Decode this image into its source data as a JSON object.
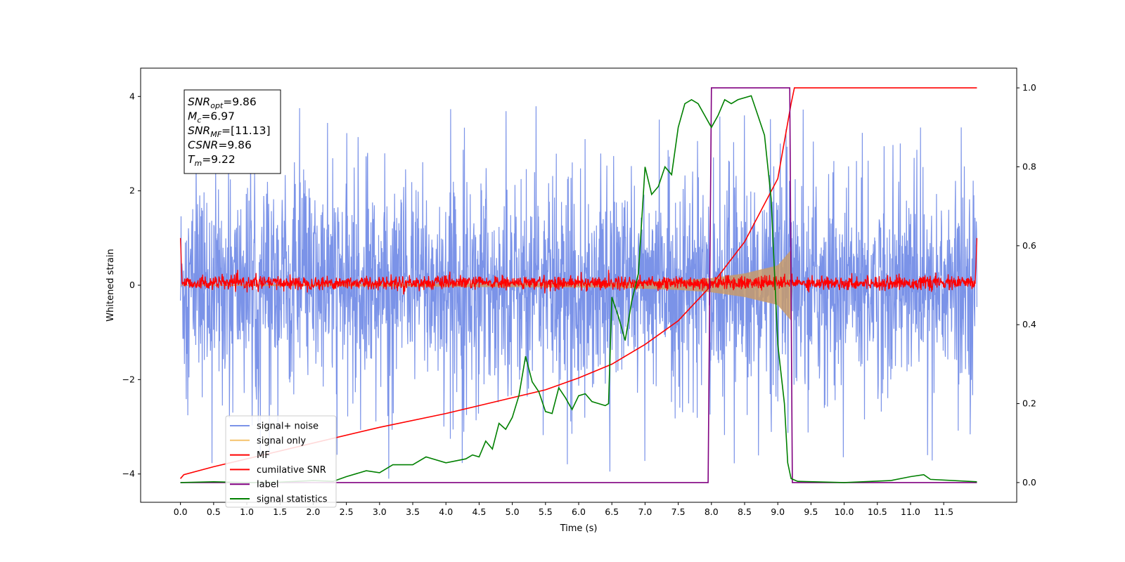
{
  "chart_data": {
    "type": "line",
    "xlabel": "Time (s)",
    "ylabel": "Whitened strain",
    "xlim": [
      -0.6,
      12.6
    ],
    "ylim": [
      -4.6,
      4.6
    ],
    "y2lim": [
      -0.05,
      1.05
    ],
    "xticks": [
      0.0,
      0.5,
      1.0,
      1.5,
      2.0,
      2.5,
      3.0,
      3.5,
      4.0,
      4.5,
      5.0,
      5.5,
      6.0,
      6.5,
      7.0,
      7.5,
      8.0,
      8.5,
      9.0,
      9.5,
      10.0,
      10.5,
      11.0,
      11.5
    ],
    "xtick_labels": [
      "0.0",
      "0.5",
      "1.0",
      "1.5",
      "2.0",
      "2.5",
      "3.0",
      "3.5",
      "4.0",
      "4.5",
      "5.0",
      "5.5",
      "6.0",
      "6.5",
      "7.0",
      "7.5",
      "8.0",
      "8.5",
      "9.0",
      "9.5",
      "10.0",
      "10.5",
      "11.0",
      "11.5"
    ],
    "yticks": [
      -4,
      -2,
      0,
      2,
      4
    ],
    "ytick_labels": [
      "−4",
      "−2",
      "0",
      "2",
      "4"
    ],
    "y2ticks": [
      0.0,
      0.2,
      0.4,
      0.6,
      0.8,
      1.0
    ],
    "y2tick_labels": [
      "0.0",
      "0.2",
      "0.4",
      "0.6",
      "0.8",
      "1.0"
    ],
    "grid": false,
    "legend_position": "lower-left",
    "annotation": {
      "lines": [
        {
          "main": "SNR",
          "sub": "opt",
          "value": "=9.86"
        },
        {
          "main": "M",
          "sub": "c",
          "value": "=6.97"
        },
        {
          "main": "SNR",
          "sub": "MF",
          "value": "=[11.13]"
        },
        {
          "main": "CSNR",
          "sub": "",
          "value": "=9.86"
        },
        {
          "main": "T",
          "sub": "m",
          "value": "=9.22"
        }
      ]
    },
    "series": [
      {
        "name": "signal+ noise",
        "axis": "left",
        "color": "#7b93e8",
        "kind": "noise",
        "x_range": [
          0.0,
          12.0
        ],
        "envelope_typical": 1.4,
        "spike_max": 4.1,
        "spike_min": -4.1
      },
      {
        "name": "signal only",
        "axis": "left",
        "color": "#f5c26b",
        "kind": "chirp",
        "x_range": [
          0.0,
          9.22
        ],
        "amplitude_points": [
          [
            0.0,
            0.01
          ],
          [
            6.5,
            0.05
          ],
          [
            7.5,
            0.1
          ],
          [
            8.0,
            0.15
          ],
          [
            8.5,
            0.25
          ],
          [
            9.0,
            0.42
          ],
          [
            9.2,
            0.75
          ],
          [
            9.22,
            0.0
          ]
        ]
      },
      {
        "name": "MF",
        "axis": "left",
        "color": "#ff0000",
        "kind": "mf-noise",
        "x_range": [
          0.0,
          12.0
        ],
        "points": [
          [
            0.0,
            1.0
          ],
          [
            0.02,
            0.1
          ],
          [
            11.98,
            0.1
          ],
          [
            12.0,
            1.0
          ]
        ],
        "jitter": 0.12
      },
      {
        "name": "cumilative SNR",
        "axis": "right",
        "color": "#ff0000",
        "points": [
          [
            0.0,
            0.01
          ],
          [
            0.05,
            0.02
          ],
          [
            0.5,
            0.04
          ],
          [
            1.0,
            0.06
          ],
          [
            2.0,
            0.1
          ],
          [
            3.0,
            0.14
          ],
          [
            4.0,
            0.175
          ],
          [
            5.0,
            0.215
          ],
          [
            5.5,
            0.235
          ],
          [
            6.0,
            0.265
          ],
          [
            6.5,
            0.3
          ],
          [
            7.0,
            0.35
          ],
          [
            7.5,
            0.41
          ],
          [
            8.0,
            0.5
          ],
          [
            8.5,
            0.61
          ],
          [
            9.0,
            0.77
          ],
          [
            9.2,
            0.96
          ],
          [
            9.25,
            1.0
          ],
          [
            12.0,
            1.0
          ]
        ]
      },
      {
        "name": "label",
        "axis": "right",
        "color": "#800080",
        "points": [
          [
            0.0,
            0.0
          ],
          [
            7.95,
            0.0
          ],
          [
            8.0,
            1.0
          ],
          [
            9.18,
            1.0
          ],
          [
            9.22,
            0.0
          ],
          [
            12.0,
            0.0
          ]
        ]
      },
      {
        "name": "signal statistics",
        "axis": "right",
        "color": "#008000",
        "points": [
          [
            0.0,
            0.0
          ],
          [
            0.5,
            0.002
          ],
          [
            1.0,
            0.0
          ],
          [
            1.5,
            0.001
          ],
          [
            2.0,
            0.005
          ],
          [
            2.3,
            0.003
          ],
          [
            2.5,
            0.015
          ],
          [
            2.8,
            0.03
          ],
          [
            3.0,
            0.025
          ],
          [
            3.2,
            0.045
          ],
          [
            3.5,
            0.045
          ],
          [
            3.7,
            0.065
          ],
          [
            4.0,
            0.05
          ],
          [
            4.3,
            0.06
          ],
          [
            4.4,
            0.07
          ],
          [
            4.5,
            0.065
          ],
          [
            4.6,
            0.105
          ],
          [
            4.7,
            0.085
          ],
          [
            4.8,
            0.15
          ],
          [
            4.9,
            0.135
          ],
          [
            5.0,
            0.165
          ],
          [
            5.1,
            0.22
          ],
          [
            5.2,
            0.32
          ],
          [
            5.3,
            0.255
          ],
          [
            5.4,
            0.23
          ],
          [
            5.5,
            0.18
          ],
          [
            5.6,
            0.175
          ],
          [
            5.7,
            0.24
          ],
          [
            5.8,
            0.215
          ],
          [
            5.9,
            0.185
          ],
          [
            6.0,
            0.22
          ],
          [
            6.1,
            0.225
          ],
          [
            6.2,
            0.205
          ],
          [
            6.3,
            0.2
          ],
          [
            6.4,
            0.195
          ],
          [
            6.45,
            0.2
          ],
          [
            6.5,
            0.47
          ],
          [
            6.6,
            0.42
          ],
          [
            6.7,
            0.36
          ],
          [
            6.8,
            0.46
          ],
          [
            6.9,
            0.53
          ],
          [
            7.0,
            0.8
          ],
          [
            7.1,
            0.73
          ],
          [
            7.2,
            0.75
          ],
          [
            7.3,
            0.8
          ],
          [
            7.4,
            0.78
          ],
          [
            7.5,
            0.9
          ],
          [
            7.6,
            0.96
          ],
          [
            7.7,
            0.97
          ],
          [
            7.8,
            0.96
          ],
          [
            7.9,
            0.93
          ],
          [
            8.0,
            0.9
          ],
          [
            8.1,
            0.93
          ],
          [
            8.2,
            0.97
          ],
          [
            8.3,
            0.96
          ],
          [
            8.4,
            0.97
          ],
          [
            8.6,
            0.98
          ],
          [
            8.7,
            0.93
          ],
          [
            8.8,
            0.88
          ],
          [
            8.9,
            0.72
          ],
          [
            9.0,
            0.35
          ],
          [
            9.1,
            0.2
          ],
          [
            9.15,
            0.05
          ],
          [
            9.2,
            0.01
          ],
          [
            9.3,
            0.003
          ],
          [
            10.0,
            0.0
          ],
          [
            10.7,
            0.005
          ],
          [
            11.0,
            0.015
          ],
          [
            11.2,
            0.02
          ],
          [
            11.3,
            0.008
          ],
          [
            12.0,
            0.002
          ]
        ]
      }
    ]
  }
}
